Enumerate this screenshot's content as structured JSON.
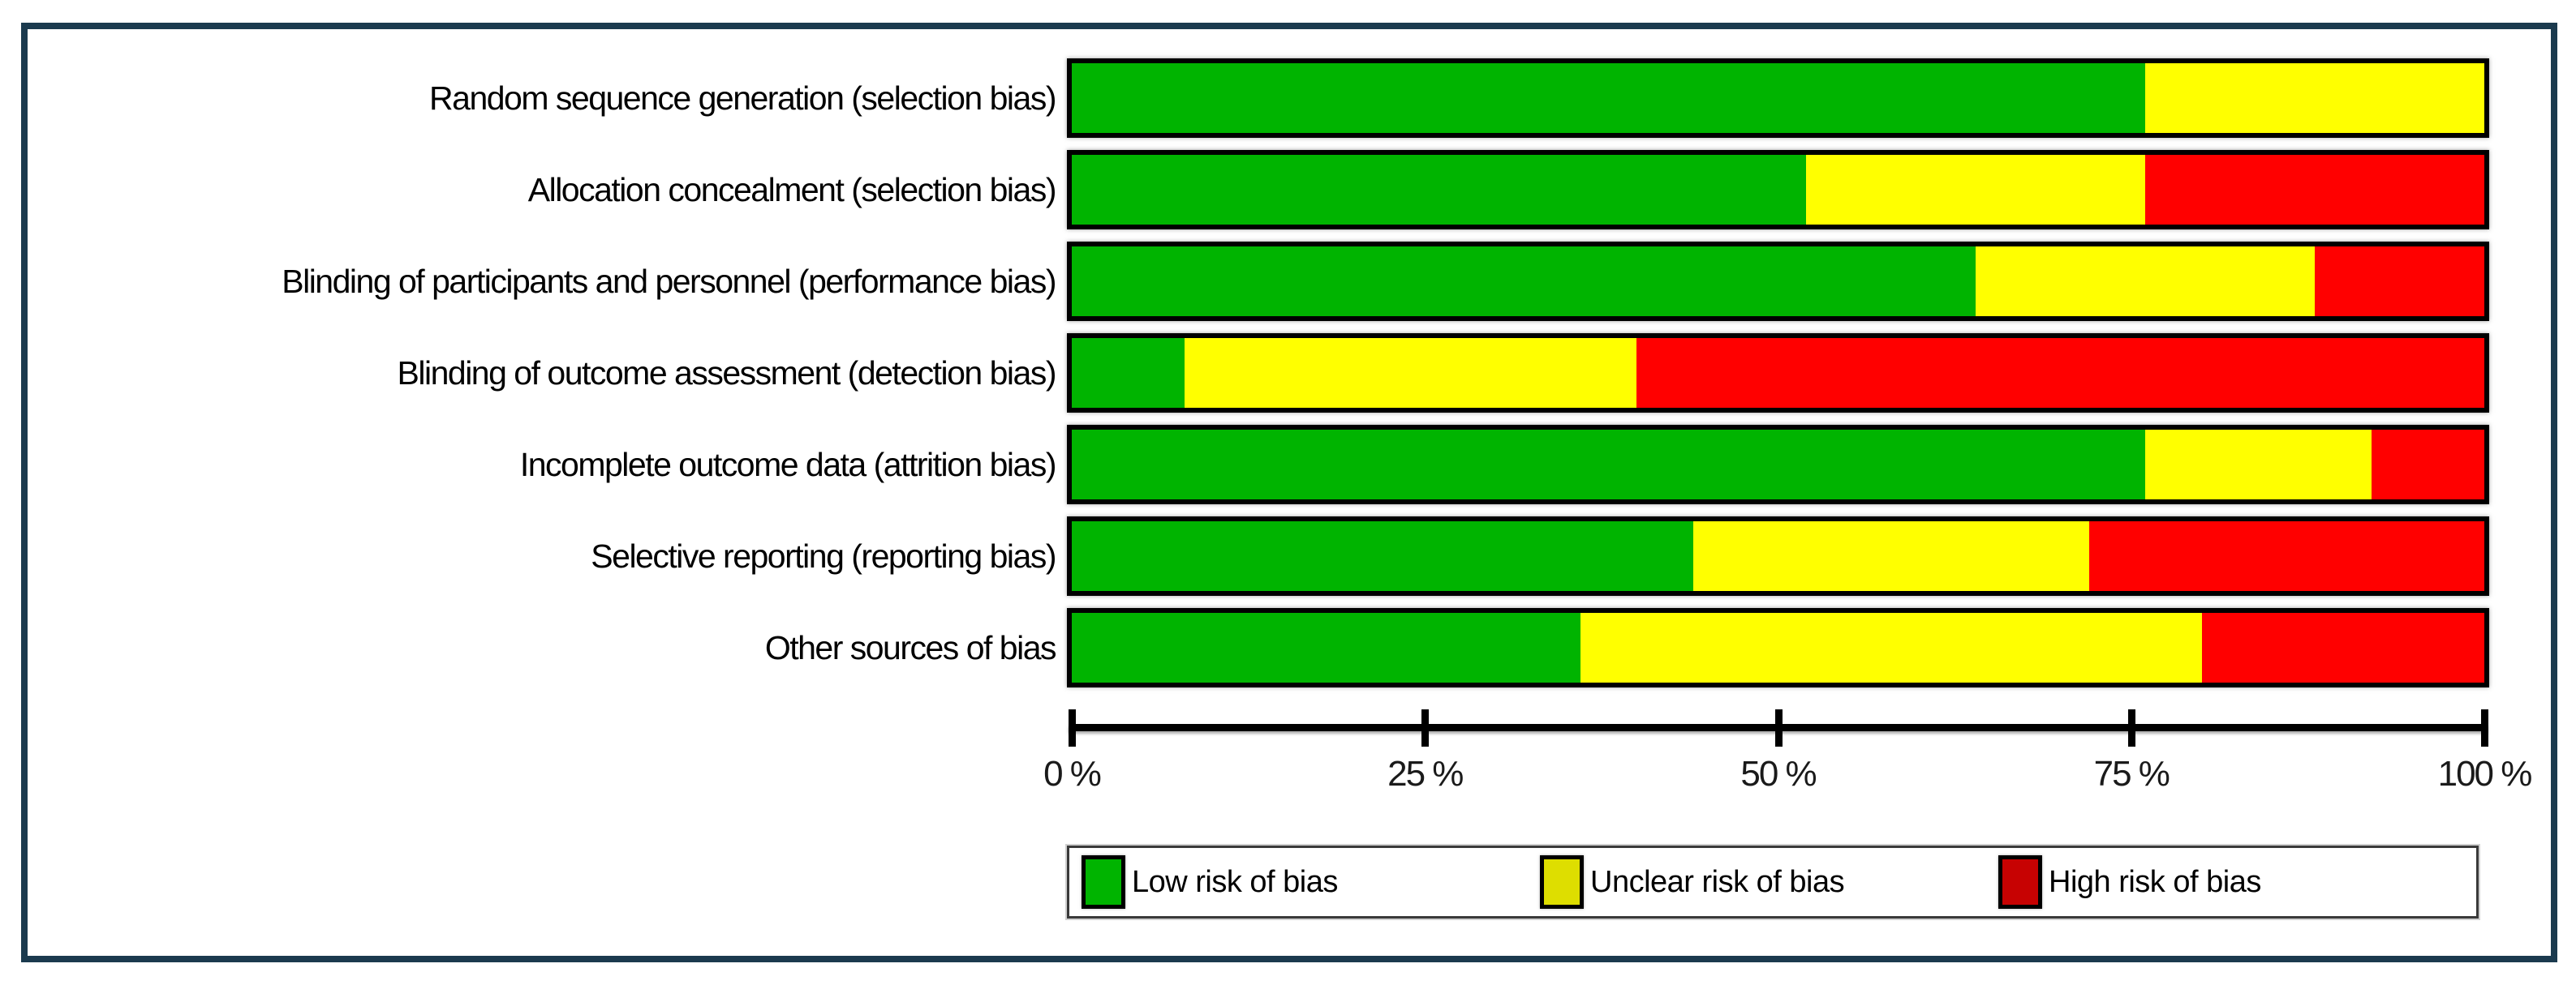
{
  "chart_data": {
    "type": "bar",
    "stacked": true,
    "orientation": "horizontal",
    "title": "",
    "xlabel": "",
    "ylabel": "",
    "xlim": [
      0,
      100
    ],
    "grid": false,
    "categories": [
      "Random sequence generation (selection bias)",
      "Allocation concealment (selection bias)",
      "Blinding of participants and personnel (performance bias)",
      "Blinding of outcome assessment (detection bias)",
      "Incomplete outcome data (attrition bias)",
      "Selective reporting (reporting bias)",
      "Other sources of bias"
    ],
    "series": [
      {
        "name": "Low risk of bias",
        "color": "#00B400",
        "values": [
          76,
          52,
          64,
          8,
          76,
          44,
          36
        ]
      },
      {
        "name": "Unclear risk of bias",
        "color": "#FFFF00",
        "values": [
          24,
          24,
          24,
          32,
          16,
          28,
          44
        ]
      },
      {
        "name": "High risk of bias",
        "color": "#FF0000",
        "values": [
          0,
          24,
          12,
          60,
          8,
          28,
          20
        ]
      }
    ],
    "x_tick_labels": [
      "0 %",
      "25 %",
      "50 %",
      "75 %",
      "100 %"
    ],
    "x_tick_values": [
      0,
      25,
      50,
      75,
      100
    ],
    "legend_position": "bottom",
    "legend": [
      {
        "label": "Low risk of bias",
        "color": "#00B400"
      },
      {
        "label": "Unclear risk of bias",
        "color": "#DEDE00"
      },
      {
        "label": "High risk of bias",
        "color": "#C70202"
      }
    ],
    "frame_color": "#1B3A4E",
    "bar_border_color": "#000000"
  }
}
